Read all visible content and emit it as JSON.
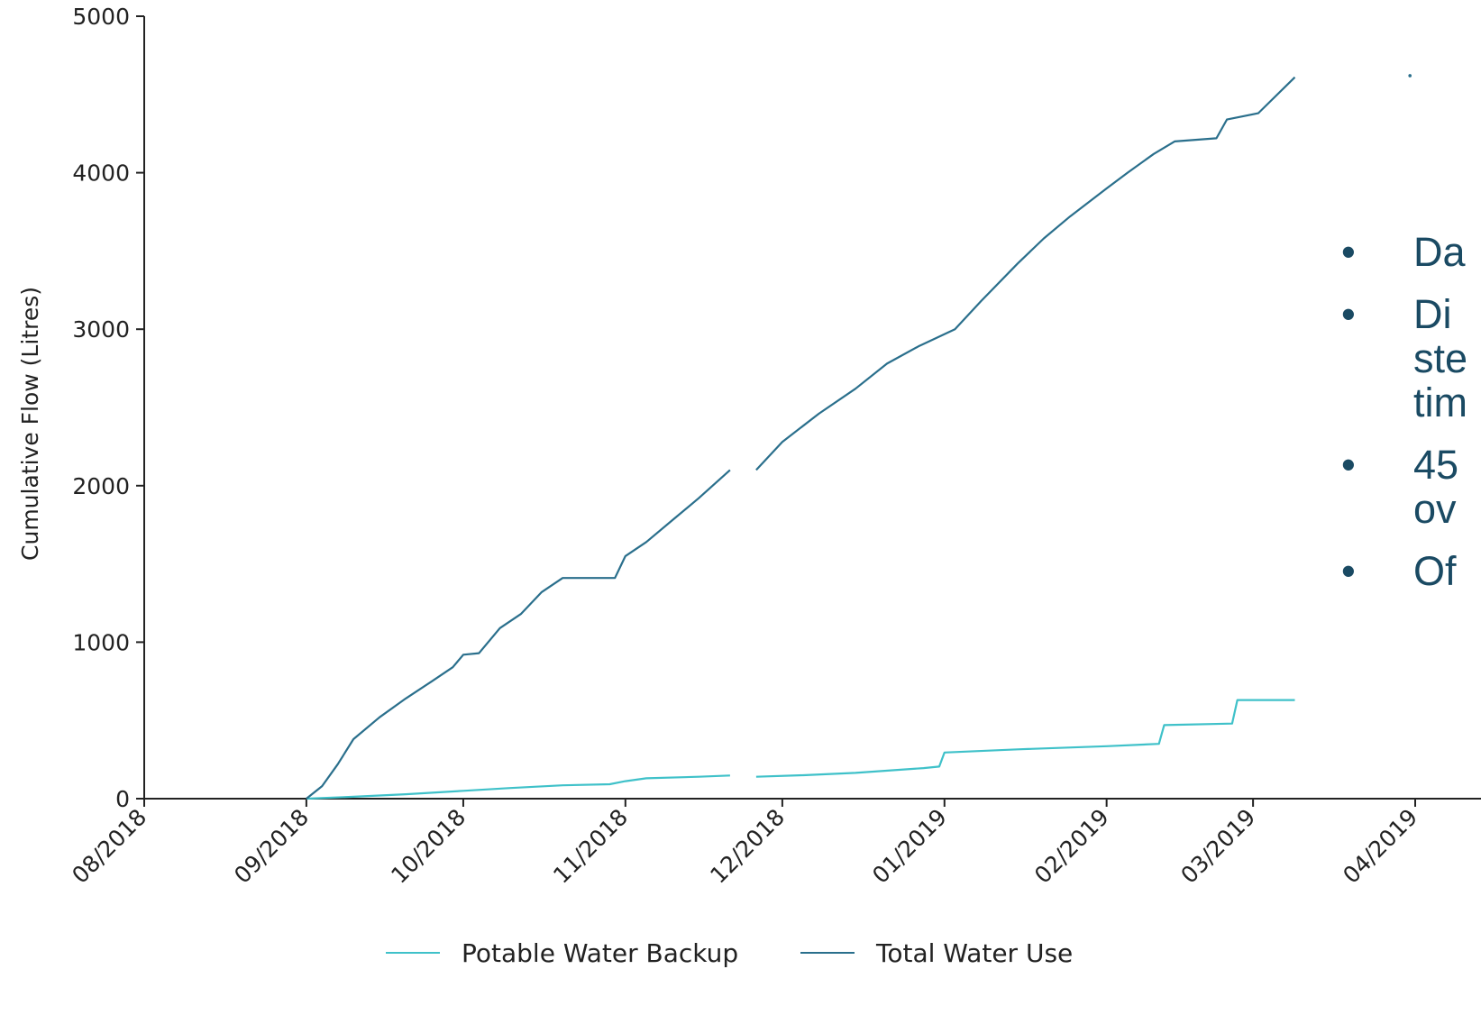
{
  "chart_data": {
    "type": "line",
    "xlabel": "",
    "ylabel": "Cumulative Flow (Litres)",
    "ylim": [
      0,
      5000
    ],
    "xlim": [
      "2018-08-01",
      "2019-04-01"
    ],
    "x_ticks": [
      "08/2018",
      "09/2018",
      "10/2018",
      "11/2018",
      "12/2018",
      "01/2019",
      "02/2019",
      "03/2019",
      "04/2019"
    ],
    "y_ticks": [
      0,
      1000,
      2000,
      3000,
      4000,
      5000
    ],
    "legend_position": "bottom",
    "series": [
      {
        "name": "Potable Water Backup",
        "color": "#3fc1c9",
        "segments": [
          [
            [
              "2018-09-01",
              0
            ],
            [
              "2018-09-10",
              12
            ],
            [
              "2018-09-20",
              28
            ],
            [
              "2018-10-01",
              50
            ],
            [
              "2018-10-10",
              68
            ],
            [
              "2018-10-20",
              85
            ],
            [
              "2018-10-29",
              92
            ],
            [
              "2018-11-01",
              112
            ],
            [
              "2018-11-05",
              130
            ],
            [
              "2018-11-15",
              140
            ],
            [
              "2018-11-21",
              148
            ]
          ],
          [
            [
              "2018-11-26",
              140
            ],
            [
              "2018-12-05",
              150
            ],
            [
              "2018-12-15",
              165
            ],
            [
              "2018-12-28",
              195
            ],
            [
              "2018-12-31",
              205
            ],
            [
              "2019-01-01",
              295
            ],
            [
              "2019-01-15",
              315
            ],
            [
              "2019-02-01",
              335
            ],
            [
              "2019-02-11",
              350
            ],
            [
              "2019-02-12",
              470
            ],
            [
              "2019-02-25",
              480
            ],
            [
              "2019-02-26",
              630
            ],
            [
              "2019-03-09",
              630
            ]
          ]
        ]
      },
      {
        "name": "Total Water Use",
        "color": "#2a6f8c",
        "segments": [
          [
            [
              "2018-09-01",
              0
            ],
            [
              "2018-09-04",
              80
            ],
            [
              "2018-09-07",
              220
            ],
            [
              "2018-09-10",
              380
            ],
            [
              "2018-09-15",
              520
            ],
            [
              "2018-09-20",
              640
            ],
            [
              "2018-09-25",
              750
            ],
            [
              "2018-09-29",
              840
            ],
            [
              "2018-10-01",
              920
            ],
            [
              "2018-10-04",
              930
            ],
            [
              "2018-10-08",
              1090
            ],
            [
              "2018-10-12",
              1180
            ],
            [
              "2018-10-16",
              1320
            ],
            [
              "2018-10-20",
              1410
            ],
            [
              "2018-10-30",
              1410
            ],
            [
              "2018-11-01",
              1550
            ],
            [
              "2018-11-05",
              1640
            ],
            [
              "2018-11-10",
              1780
            ],
            [
              "2018-11-15",
              1920
            ],
            [
              "2018-11-21",
              2100
            ]
          ],
          [
            [
              "2018-11-26",
              2100
            ],
            [
              "2018-12-01",
              2280
            ],
            [
              "2018-12-08",
              2460
            ],
            [
              "2018-12-15",
              2620
            ],
            [
              "2018-12-21",
              2780
            ],
            [
              "2018-12-27",
              2890
            ],
            [
              "2019-01-03",
              3000
            ],
            [
              "2019-01-08",
              3180
            ],
            [
              "2019-01-15",
              3420
            ],
            [
              "2019-01-20",
              3580
            ],
            [
              "2019-01-25",
              3720
            ],
            [
              "2019-02-01",
              3900
            ],
            [
              "2019-02-05",
              4000
            ],
            [
              "2019-02-10",
              4120
            ],
            [
              "2019-02-14",
              4200
            ],
            [
              "2019-02-22",
              4220
            ],
            [
              "2019-02-24",
              4340
            ],
            [
              "2019-03-02",
              4380
            ],
            [
              "2019-03-09",
              4610
            ]
          ],
          [
            [
              "2019-03-31",
              4620
            ]
          ]
        ]
      }
    ],
    "annotations": [
      "Da",
      "Di\nste\ntim",
      "45\nov",
      "Of"
    ]
  }
}
